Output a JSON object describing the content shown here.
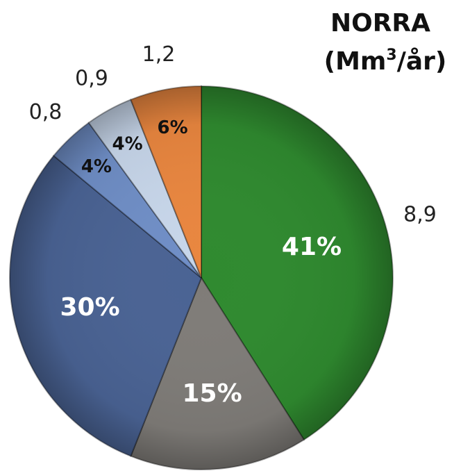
{
  "chart_data": {
    "type": "pie",
    "title_line1": "NORRA",
    "title_unit_prefix": "(Mm",
    "title_unit_sup": "3",
    "title_unit_suffix": "/år)",
    "slices": [
      {
        "value_label": "8,9",
        "percent": 41,
        "percent_label": "41%",
        "color": "#2f8a2f"
      },
      {
        "value_label": "",
        "percent": 15,
        "percent_label": "15%",
        "color": "#7f7c78"
      },
      {
        "value_label": "",
        "percent": 30,
        "percent_label": "30%",
        "color": "#4a6394"
      },
      {
        "value_label": "0,8",
        "percent": 4,
        "percent_label": "4%",
        "color": "#6f8ec6"
      },
      {
        "value_label": "0,9",
        "percent": 4,
        "percent_label": "4%",
        "color": "#c7d6ea"
      },
      {
        "value_label": "1,2",
        "percent": 6,
        "percent_label": "6%",
        "color": "#e9863f"
      }
    ]
  }
}
